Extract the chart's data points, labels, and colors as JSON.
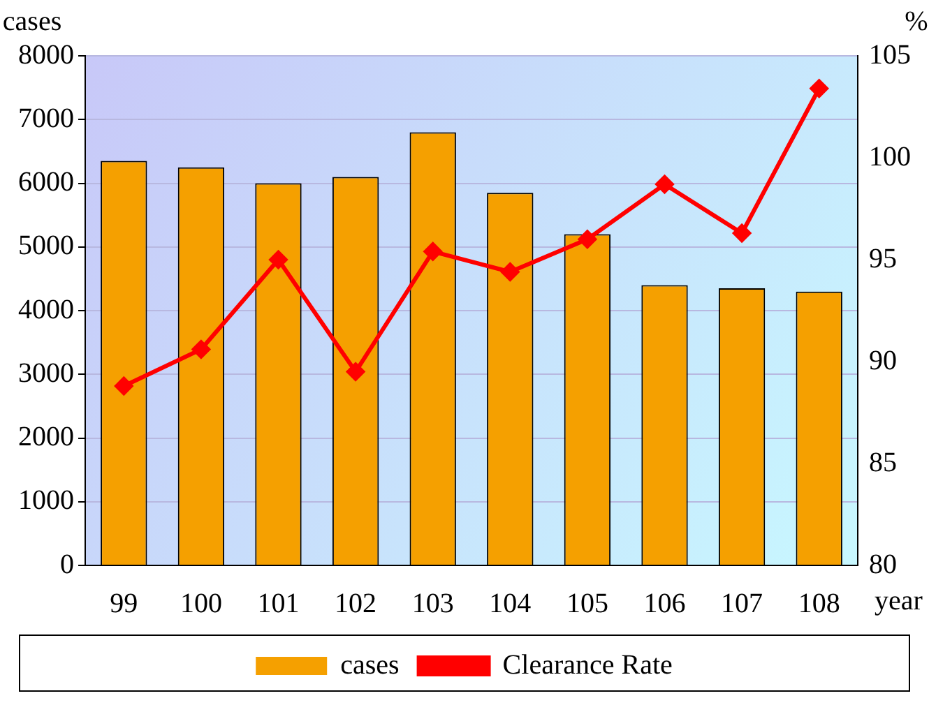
{
  "chart_data": {
    "type": "bar",
    "ylabel": "cases",
    "y2label": "%",
    "xlabel": "year",
    "categories": [
      "99",
      "100",
      "101",
      "102",
      "103",
      "104",
      "105",
      "106",
      "107",
      "108"
    ],
    "series": [
      {
        "name": "cases",
        "color": "#f5a000",
        "values": [
          6350,
          6250,
          6000,
          6100,
          6800,
          5850,
          5200,
          4400,
          4350,
          4300
        ]
      },
      {
        "name": "Clearance Rate",
        "type": "line",
        "axis": "y2",
        "color": "#ff0000",
        "marker": "diamond",
        "values": [
          88.8,
          90.6,
          95.0,
          89.5,
          95.4,
          94.4,
          96.0,
          98.7,
          96.3,
          103.4
        ]
      }
    ],
    "ylim": [
      0,
      8000
    ],
    "yticks": [
      0,
      1000,
      2000,
      3000,
      4000,
      5000,
      6000,
      7000,
      8000
    ],
    "y2lim": [
      80,
      105
    ],
    "y2ticks": [
      80,
      85,
      90,
      95,
      100,
      105
    ],
    "grid": "y",
    "legend": "bottom"
  }
}
